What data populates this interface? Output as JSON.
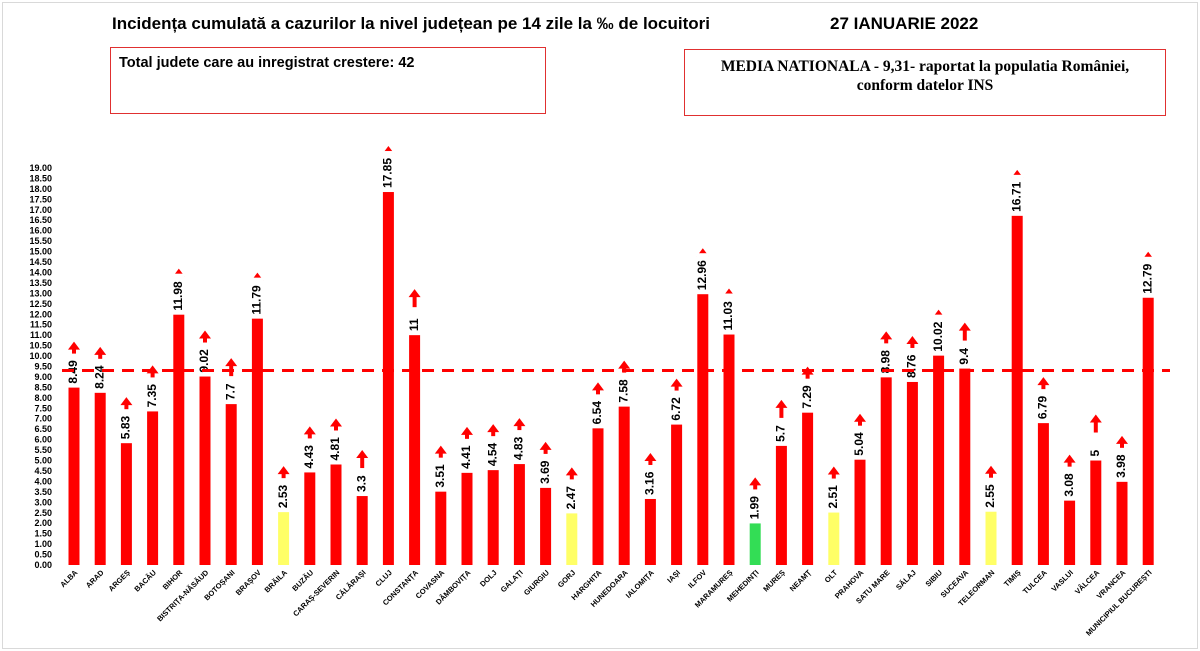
{
  "header": {
    "title": "Incidența cumulată a cazurilor la nivel județean pe 14 zile la ‰ de locuitori",
    "date": "27 IANUARIE 2022"
  },
  "boxes": {
    "left_text": "Total judete care au inregistrat crestere: 42",
    "right_line1": "MEDIA NATIONALA - 9,31-   raportat la populatia României,",
    "right_line2": "conform datelor INS"
  },
  "colors": {
    "red": "#ff0000",
    "yellow": "#ffff66",
    "green": "#33dd55",
    "arrow": "#ff0000",
    "reference_line": "#ff0000"
  },
  "chart_data": {
    "type": "bar",
    "title": "Incidența cumulată a cazurilor la nivel județean pe 14 zile la ‰ de locuitori",
    "xlabel": "",
    "ylabel": "",
    "ylim": [
      0,
      19
    ],
    "ytick_step": 0.5,
    "ytick_labels": [
      "0.00",
      "0.50",
      "1.00",
      "1.50",
      "2.00",
      "2.50",
      "3.00",
      "3.50",
      "4.00",
      "4.50",
      "5.00",
      "5.50",
      "6.00",
      "6.50",
      "7.00",
      "7.50",
      "8.00",
      "8.50",
      "9.00",
      "9.50",
      "10.00",
      "10.50",
      "11.00",
      "11.50",
      "12.00",
      "12.50",
      "13.00",
      "13.50",
      "14.00",
      "14.50",
      "15.00",
      "15.50",
      "16.00",
      "16.50",
      "17.00",
      "17.50",
      "18.00",
      "18.50",
      "19.00"
    ],
    "grid": false,
    "reference_line": {
      "value": 9.31,
      "style": "dashed"
    },
    "categories": [
      "ALBA",
      "ARAD",
      "ARGEȘ",
      "BACĂU",
      "BIHOR",
      "BISTRIȚA-NĂSĂUD",
      "BOTOȘANI",
      "BRAȘOV",
      "BRĂILA",
      "BUZĂU",
      "CARAȘ-SEVERIN",
      "CĂLĂRAȘI",
      "CLUJ",
      "CONSTANȚA",
      "COVASNA",
      "DÂMBOVIȚA",
      "DOLJ",
      "GALAȚI",
      "GIURGIU",
      "GORJ",
      "HARGHITA",
      "HUNEDOARA",
      "IALOMIȚA",
      "IAȘI",
      "ILFOV",
      "MARAMUREȘ",
      "MEHEDINȚI",
      "MUREȘ",
      "NEAMȚ",
      "OLT",
      "PRAHOVA",
      "SATU MARE",
      "SĂLAJ",
      "SIBIU",
      "SUCEAVA",
      "TELEORMAN",
      "TIMIȘ",
      "TULCEA",
      "VASLUI",
      "VÂLCEA",
      "VRANCEA",
      "MUNICIPIUL BUCUREȘTI"
    ],
    "values": [
      8.49,
      8.24,
      5.83,
      7.35,
      11.98,
      9.02,
      7.7,
      11.79,
      2.53,
      4.43,
      4.81,
      3.3,
      17.85,
      11,
      3.51,
      4.41,
      4.54,
      4.83,
      3.69,
      2.47,
      6.54,
      7.58,
      3.16,
      6.72,
      12.96,
      11.03,
      1.99,
      5.7,
      7.29,
      2.51,
      5.04,
      8.98,
      8.76,
      10.02,
      9.4,
      2.55,
      16.71,
      6.79,
      3.08,
      5,
      3.98,
      12.79
    ],
    "value_labels": [
      "8.49",
      "8.24",
      "5.83",
      "7.35",
      "11.98",
      "9.02",
      "7.7",
      "11.79",
      "2.53",
      "4.43",
      "4.81",
      "3.3",
      "17.85",
      "11",
      "3.51",
      "4.41",
      "4.54",
      "4.83",
      "3.69",
      "2.47",
      "6.54",
      "7.58",
      "3.16",
      "6.72",
      "12.96",
      "11.03",
      "1.99",
      "5.7",
      "7.29",
      "2.51",
      "5.04",
      "8.98",
      "8.76",
      "10.02",
      "9.4",
      "2.55",
      "16.71",
      "6.79",
      "3.08",
      "5",
      "3.98",
      "12.79"
    ],
    "bar_colors": [
      "red",
      "red",
      "red",
      "red",
      "red",
      "red",
      "red",
      "red",
      "yellow",
      "red",
      "red",
      "red",
      "red",
      "red",
      "red",
      "red",
      "red",
      "red",
      "red",
      "yellow",
      "red",
      "red",
      "red",
      "red",
      "red",
      "red",
      "green",
      "red",
      "red",
      "yellow",
      "red",
      "red",
      "red",
      "red",
      "red",
      "yellow",
      "red",
      "red",
      "red",
      "red",
      "red",
      "red"
    ],
    "trend_arrows": [
      "up",
      "up",
      "up",
      "up",
      "up",
      "up",
      "up",
      "up",
      "up",
      "up",
      "up",
      "up",
      "up",
      "up",
      "up",
      "up",
      "up",
      "up",
      "up",
      "up",
      "up",
      "up",
      "up",
      "up",
      "up",
      "up",
      "up",
      "up",
      "up",
      "up",
      "up",
      "up",
      "up",
      "up",
      "up",
      "up",
      "up",
      "up",
      "up",
      "up",
      "up",
      "up"
    ]
  }
}
